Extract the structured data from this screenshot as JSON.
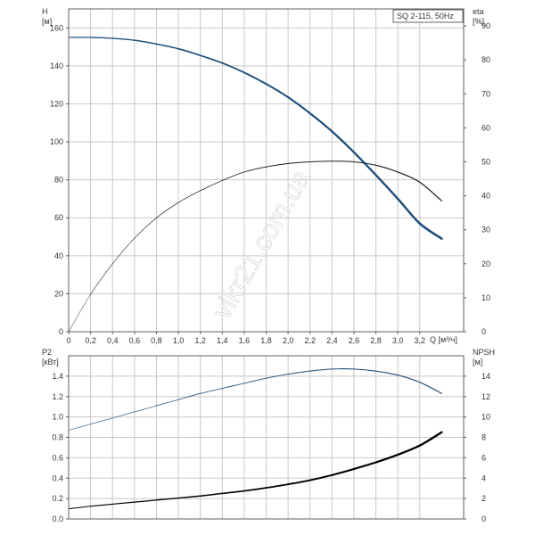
{
  "chart_data": [
    {
      "type": "line",
      "title": "SQ 2-115, 50Hz",
      "xlabel": "Q [м³/ч]",
      "ylabel_left": "H\n[м]",
      "ylabel_right": "eta\n[%]",
      "xlim": [
        0,
        3.6
      ],
      "ylim_left": [
        0,
        170
      ],
      "ylim_right": [
        0,
        95
      ],
      "xticks": [
        "0",
        "0,2",
        "0,4",
        "0,6",
        "0,8",
        "1,0",
        "1,2",
        "1,4",
        "1,6",
        "1,8",
        "2,0",
        "2,2",
        "2,4",
        "2,6",
        "2,8",
        "3,0",
        "3,2"
      ],
      "yticks_left": [
        "0",
        "20",
        "40",
        "60",
        "80",
        "100",
        "120",
        "140",
        "160"
      ],
      "yticks_right": [
        "0",
        "10",
        "20",
        "30",
        "40",
        "50",
        "60",
        "70",
        "80",
        "90"
      ],
      "grid": true,
      "legend": "top-right",
      "series": [
        {
          "axis": "left",
          "color": "#1f4e79",
          "x": [
            0,
            0.2,
            0.4,
            0.6,
            0.8,
            1.0,
            1.2,
            1.4,
            1.6,
            1.8,
            2.0,
            2.2,
            2.4,
            2.6,
            2.8,
            3.0,
            3.2,
            3.4
          ],
          "values": [
            155,
            155,
            154.5,
            153.5,
            151.5,
            149,
            145.5,
            141.5,
            136.5,
            130.5,
            123.5,
            115,
            105.5,
            94.5,
            82.5,
            70,
            57,
            49
          ]
        },
        {
          "axis": "right",
          "color": "#1a1a1a",
          "x": [
            0,
            0.2,
            0.4,
            0.6,
            0.8,
            1.0,
            1.2,
            1.4,
            1.6,
            1.8,
            2.0,
            2.2,
            2.4,
            2.6,
            2.8,
            3.0,
            3.2,
            3.4
          ],
          "values": [
            0,
            11,
            20,
            27.5,
            33.5,
            38,
            41.5,
            44.5,
            47,
            48.5,
            49.5,
            50,
            50.2,
            50,
            49,
            47,
            44,
            38.5
          ]
        }
      ]
    },
    {
      "type": "line",
      "xlabel": "",
      "ylabel_left": "P2\n[кВт]",
      "ylabel_right": "NPSH\n[м]",
      "xlim": [
        0,
        3.6
      ],
      "ylim_left": [
        0,
        1.6
      ],
      "ylim_right": [
        0,
        16
      ],
      "yticks_left": [
        "0.0",
        "0.2",
        "0.4",
        "0.6",
        "0.8",
        "1.0",
        "1.2",
        "1.4"
      ],
      "yticks_right": [
        "0",
        "2",
        "4",
        "6",
        "8",
        "10",
        "12",
        "14"
      ],
      "grid": true,
      "series": [
        {
          "axis": "left",
          "color": "#1f4e79",
          "x": [
            0,
            0.2,
            0.4,
            0.6,
            0.8,
            1.0,
            1.2,
            1.4,
            1.6,
            1.8,
            2.0,
            2.2,
            2.4,
            2.6,
            2.8,
            3.0,
            3.2,
            3.4
          ],
          "values": [
            0.87,
            0.93,
            0.99,
            1.05,
            1.11,
            1.17,
            1.23,
            1.28,
            1.33,
            1.38,
            1.42,
            1.45,
            1.47,
            1.47,
            1.45,
            1.41,
            1.34,
            1.23
          ]
        },
        {
          "axis": "right",
          "color": "#000000",
          "x": [
            0,
            0.2,
            0.4,
            0.6,
            0.8,
            1.0,
            1.2,
            1.4,
            1.6,
            1.8,
            2.0,
            2.2,
            2.4,
            2.6,
            2.8,
            3.0,
            3.2,
            3.4
          ],
          "values": [
            1.0,
            1.25,
            1.45,
            1.65,
            1.85,
            2.05,
            2.25,
            2.5,
            2.75,
            3.05,
            3.4,
            3.8,
            4.3,
            4.9,
            5.55,
            6.3,
            7.2,
            8.5
          ]
        }
      ]
    }
  ],
  "watermark": "vikr21.com.ua"
}
